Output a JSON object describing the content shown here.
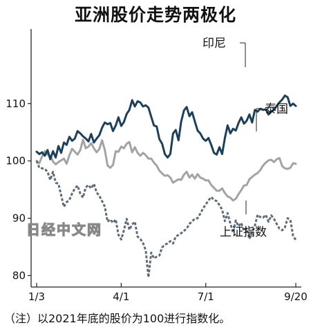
{
  "chart_data": {
    "type": "line",
    "title": "亚洲股价走势两极化",
    "note": "（注）以2021年底的股价为100进行指数化。",
    "watermark": "日经中文网",
    "ylim": [
      78,
      123
    ],
    "yticks": [
      80,
      90,
      100,
      110
    ],
    "xticks": [
      "1/3",
      "4/1",
      "7/1",
      "9/20"
    ],
    "grid": false,
    "series": [
      {
        "name": "印尼",
        "color": "#1c3f5a",
        "style": "solid",
        "values": [
          101.6,
          101.2,
          101.5,
          100.9,
          101.9,
          100.3,
          101.7,
          100.6,
          102.6,
          101.4,
          103.2,
          102.8,
          104.2,
          103.5,
          103.9,
          105.2,
          104.8,
          104.3,
          103.9,
          103.4,
          104.7,
          103.2,
          103.9,
          104.5,
          105.8,
          106.7,
          106.4,
          106.6,
          105.2,
          106.2,
          107.6,
          106.1,
          106.8,
          108.2,
          108.9,
          110.6,
          109.5,
          110.4,
          110.2,
          109.5,
          109.7,
          109.3,
          107.7,
          106.2,
          106.0,
          103.8,
          103.0,
          101.2,
          100.6,
          101.2,
          104.8,
          105.4,
          103.6,
          106.9,
          108.8,
          109.4,
          107.8,
          108.5,
          106.9,
          105.3,
          104.8,
          103.9,
          103.5,
          104.0,
          102.8,
          101.4,
          101.1,
          102.4,
          101.2,
          104.0,
          106.2,
          104.8,
          105.6,
          105.3,
          106.6,
          107.6,
          106.5,
          107.0,
          108.1,
          106.7,
          108.9,
          108.6,
          109.1,
          108.9,
          109.0,
          108.1,
          108.6,
          108.9,
          109.6,
          110.2,
          110.7,
          111.4,
          111.1,
          109.6,
          110.0,
          109.6
        ]
      },
      {
        "name": "泰国",
        "color": "#a3a3a3",
        "style": "solid",
        "values": [
          100.0,
          99.6,
          100.8,
          101.7,
          101.1,
          100.9,
          99.9,
          99.4,
          99.8,
          100.1,
          100.4,
          99.5,
          101.0,
          102.1,
          101.6,
          101.1,
          101.9,
          103.7,
          102.2,
          102.5,
          103.1,
          102.2,
          101.5,
          102.1,
          103.6,
          101.9,
          99.2,
          98.8,
          99.3,
          101.7,
          101.6,
          102.5,
          102.2,
          103.0,
          103.3,
          101.5,
          102.4,
          101.4,
          100.9,
          101.4,
          101.0,
          100.4,
          100.4,
          99.7,
          99.2,
          98.3,
          97.8,
          97.4,
          97.5,
          97.1,
          96.2,
          96.5,
          96.8,
          96.7,
          97.6,
          98.1,
          97.1,
          97.6,
          96.9,
          97.7,
          97.1,
          96.9,
          96.6,
          96.6,
          95.8,
          95.3,
          94.8,
          94.8,
          95.2,
          94.4,
          93.8,
          93.6,
          93.1,
          93.4,
          94.2,
          94.9,
          95.7,
          95.8,
          96.8,
          97.2,
          97.6,
          97.9,
          98.4,
          99.2,
          99.7,
          100.1,
          100.2,
          99.8,
          100.3,
          100.5,
          99.1,
          98.7,
          98.6,
          98.8,
          99.6,
          99.5
        ]
      },
      {
        "name": "上证指数",
        "color": "#5e6c78",
        "style": "dashed",
        "values": [
          100.0,
          98.8,
          98.7,
          98.6,
          98.1,
          96.7,
          98.1,
          96.2,
          96.0,
          94.0,
          92.0,
          92.8,
          93.2,
          94.3,
          95.2,
          95.7,
          94.3,
          93.6,
          95.4,
          95.8,
          95.2,
          96.0,
          94.5,
          93.9,
          93.0,
          92.0,
          89.4,
          89.8,
          89.2,
          89.8,
          87.1,
          86.3,
          87.9,
          89.9,
          88.0,
          88.9,
          89.4,
          86.8,
          86.4,
          85.7,
          84.4,
          79.7,
          84.0,
          83.0,
          83.3,
          83.5,
          84.9,
          85.4,
          85.6,
          86.0,
          85.6,
          86.8,
          87.1,
          87.4,
          87.8,
          88.2,
          89.0,
          89.5,
          89.9,
          90.0,
          90.8,
          91.7,
          92.4,
          93.1,
          93.7,
          93.2,
          93.0,
          92.3,
          91.5,
          89.5,
          90.9,
          89.1,
          87.5,
          89.6,
          88.6,
          89.2,
          87.8,
          88.2,
          86.4,
          87.7,
          88.7,
          90.6,
          90.2,
          90.1,
          90.6,
          89.4,
          90.5,
          89.9,
          89.0,
          88.2,
          87.9,
          88.4,
          90.0,
          89.7,
          86.9,
          86.2
        ]
      }
    ]
  }
}
